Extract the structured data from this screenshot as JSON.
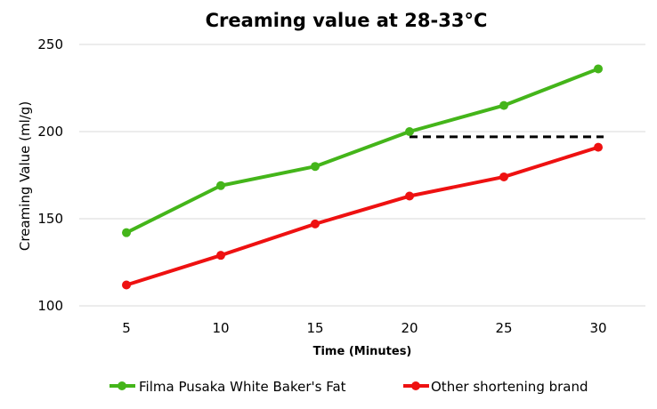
{
  "chart_data": {
    "type": "line",
    "title": "Creaming value at 28-33°C",
    "xlabel": "Time (Minutes)",
    "ylabel": "Creaming Value (ml/g)",
    "x": [
      5,
      10,
      15,
      20,
      25,
      30
    ],
    "categories": [
      "5",
      "10",
      "15",
      "20",
      "25",
      "30"
    ],
    "ylim": [
      100,
      250
    ],
    "yticks": [
      100,
      150,
      200,
      250
    ],
    "grid": true,
    "legend_position": "bottom",
    "series": [
      {
        "name": "Filma Pusaka White Baker's Fat",
        "color": "#44b51a",
        "values": [
          142,
          169,
          180,
          200,
          215,
          236
        ]
      },
      {
        "name": "Other shortening brand",
        "color": "#ee1111",
        "values": [
          112,
          129,
          147,
          163,
          174,
          191
        ]
      }
    ],
    "reference_line": {
      "style": "dashed",
      "color": "#000000",
      "y": 197,
      "x_start": 20,
      "x_end": 30
    }
  }
}
